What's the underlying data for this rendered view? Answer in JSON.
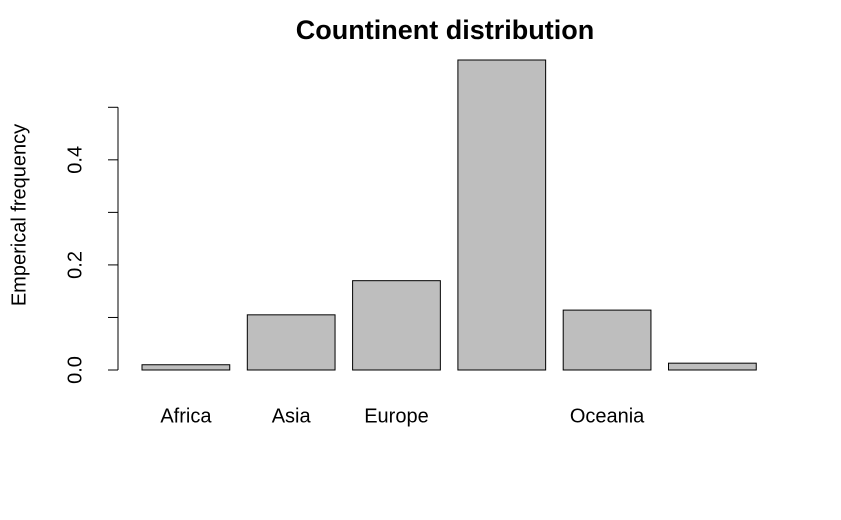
{
  "chart_data": {
    "type": "bar",
    "title": "Countinent distribution",
    "ylabel": "Emperical frequency",
    "categories": [
      "Africa",
      "Asia",
      "Europe",
      null,
      "Oceania",
      null
    ],
    "values": [
      0.01,
      0.105,
      0.17,
      0.59,
      0.114,
      0.013
    ],
    "color": "#bebebe",
    "ylim": [
      0,
      0.59
    ],
    "yticks": [
      {
        "value": 0,
        "label": "0.0"
      },
      0.2,
      0.4
    ],
    "minor_yticks": [
      0.1,
      0.3,
      0.5
    ]
  }
}
